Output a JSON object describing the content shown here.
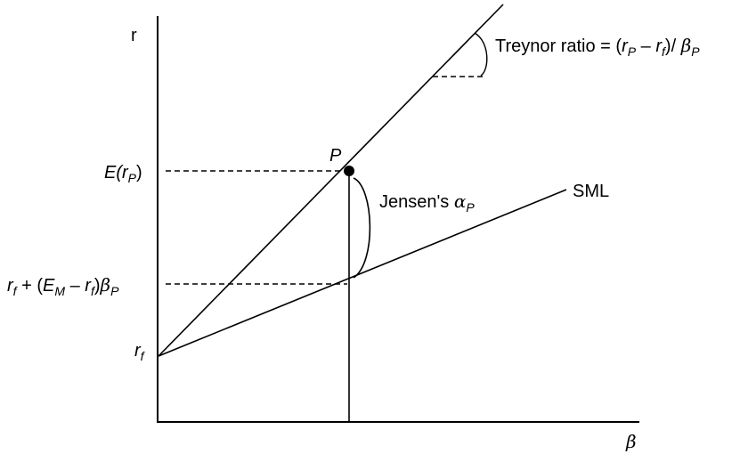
{
  "diagram": {
    "y_axis_label": "r",
    "x_axis_label": "β",
    "point_label": "P",
    "sml_label": "SML",
    "treynor": {
      "text": "Treynor ratio = (",
      "rp": "r",
      "rp_sub": "P",
      "minus": " – ",
      "rf": "r",
      "rf_sub": "f",
      "close": ")/ ",
      "beta": "β",
      "beta_sub": "P"
    },
    "jensen": {
      "text": "Jensen's ",
      "alpha": "α",
      "alpha_sub": "P"
    },
    "y_ticks": {
      "expected_return": {
        "e": "E(",
        "r": "r",
        "sub": "P",
        "close": ")"
      },
      "capm_return": {
        "rf": "r",
        "rf_sub": "f",
        "plus": " + (",
        "em": "E",
        "em_sub": "M",
        "minus": " – ",
        "rf2": "r",
        "rf2_sub": "f",
        "close": ")",
        "beta": "β",
        "beta_sub": "P"
      },
      "risk_free": {
        "r": "r",
        "sub": "f"
      }
    }
  }
}
